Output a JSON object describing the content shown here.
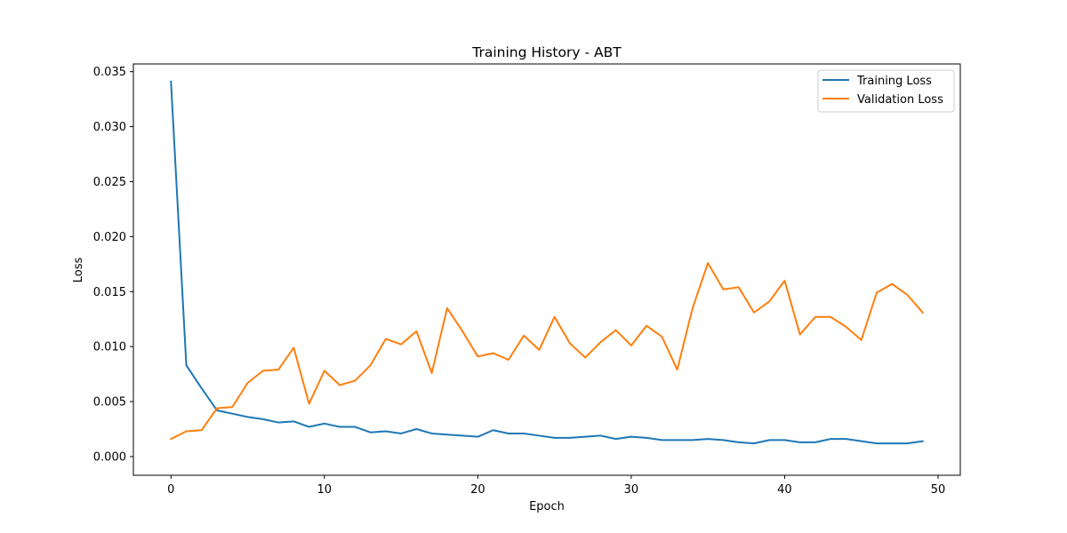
{
  "chart_data": {
    "type": "line",
    "title": "Training History - ABT",
    "xlabel": "Epoch",
    "ylabel": "Loss",
    "xlim": [
      -2.45,
      51.45
    ],
    "ylim": [
      -0.0017,
      0.0357
    ],
    "xticks": [
      0,
      10,
      20,
      30,
      40,
      50
    ],
    "yticks": [
      0.0,
      0.005,
      0.01,
      0.015,
      0.02,
      0.025,
      0.03,
      0.035
    ],
    "ytick_labels": [
      "0.000",
      "0.005",
      "0.010",
      "0.015",
      "0.020",
      "0.025",
      "0.030",
      "0.035"
    ],
    "xtick_labels": [
      "0",
      "10",
      "20",
      "30",
      "40",
      "50"
    ],
    "grid": false,
    "legend_position": "top-right",
    "x": [
      0,
      1,
      2,
      3,
      4,
      5,
      6,
      7,
      8,
      9,
      10,
      11,
      12,
      13,
      14,
      15,
      16,
      17,
      18,
      19,
      20,
      21,
      22,
      23,
      24,
      25,
      26,
      27,
      28,
      29,
      30,
      31,
      32,
      33,
      34,
      35,
      36,
      37,
      38,
      39,
      40,
      41,
      42,
      43,
      44,
      45,
      46,
      47,
      48,
      49
    ],
    "series": [
      {
        "name": "Training Loss",
        "color": "#1f77b4",
        "values": [
          0.0341,
          0.0083,
          0.0062,
          0.0042,
          0.0039,
          0.0036,
          0.0034,
          0.0031,
          0.0032,
          0.0027,
          0.003,
          0.0027,
          0.0027,
          0.0022,
          0.0023,
          0.0021,
          0.0025,
          0.0021,
          0.002,
          0.0019,
          0.0018,
          0.0024,
          0.0021,
          0.0021,
          0.0019,
          0.0017,
          0.0017,
          0.0018,
          0.0019,
          0.0016,
          0.0018,
          0.0017,
          0.0015,
          0.0015,
          0.0015,
          0.0016,
          0.0015,
          0.0013,
          0.0012,
          0.0015,
          0.0015,
          0.0013,
          0.0013,
          0.0016,
          0.0016,
          0.0014,
          0.0012,
          0.0012,
          0.0012,
          0.0014
        ]
      },
      {
        "name": "Validation Loss",
        "color": "#ff7f0e",
        "values": [
          0.0016,
          0.0023,
          0.0024,
          0.0044,
          0.0045,
          0.0067,
          0.0078,
          0.0079,
          0.0099,
          0.0048,
          0.0078,
          0.0065,
          0.0069,
          0.0083,
          0.0107,
          0.0102,
          0.0114,
          0.0076,
          0.0135,
          0.0114,
          0.0091,
          0.0094,
          0.0088,
          0.011,
          0.0097,
          0.0127,
          0.0103,
          0.009,
          0.0104,
          0.0115,
          0.0101,
          0.0119,
          0.0109,
          0.0079,
          0.0135,
          0.0176,
          0.0152,
          0.0154,
          0.0131,
          0.0141,
          0.016,
          0.0111,
          0.0127,
          0.0127,
          0.0118,
          0.0106,
          0.0149,
          0.0157,
          0.0147,
          0.0131
        ]
      }
    ]
  }
}
